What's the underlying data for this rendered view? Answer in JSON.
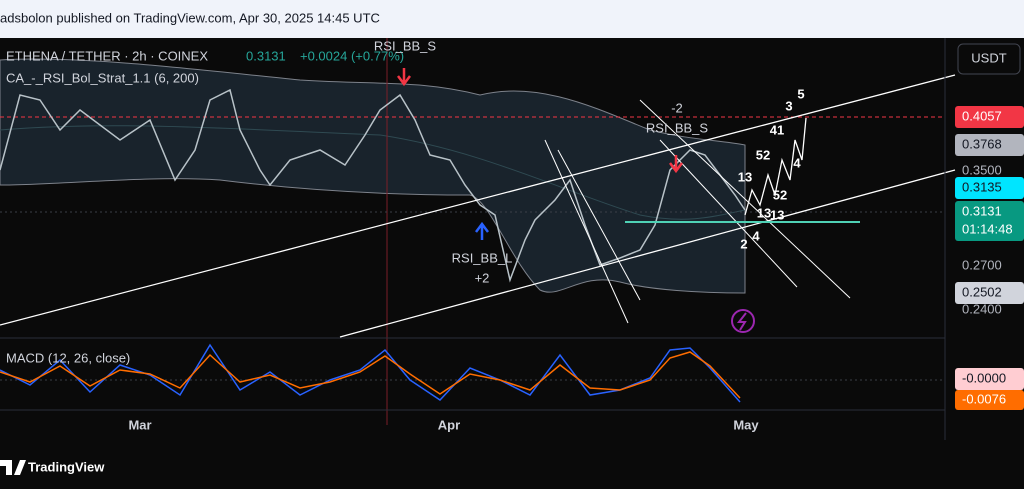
{
  "header": {
    "text": "adsbolon published on TradingView.com, Apr 30, 2025 14:45 UTC"
  },
  "legend": {
    "symbol": "ETHENA / TETHER · 2h · COINEX",
    "price": "0.3131",
    "change": "+0.0024 (+0.77%)",
    "indicator": "CA_-_RSI_Bol_Strat_1.1 (6, 200)"
  },
  "annotations": {
    "signals": [
      "RSI_BB_S",
      "RSI_BB_L",
      "+2",
      "-2",
      "RSI_BB_S"
    ],
    "waves": [
      "5",
      "3",
      "41",
      "52",
      "4",
      "13",
      "52",
      "13",
      "13",
      "2",
      "4"
    ]
  },
  "price_axis": {
    "currency": "USDT",
    "labels": [
      "0.4057",
      "0.3768",
      "0.3500",
      "0.3135",
      "0.3131",
      "0.2700",
      "0.2502",
      "0.2400"
    ],
    "countdown": "01:14:48"
  },
  "macd": {
    "label": "MACD (12, 26, close)",
    "labels": [
      "-0.0000",
      "-0.0076"
    ]
  },
  "time_axis": [
    "Mar",
    "Apr",
    "May"
  ],
  "footer": {
    "brand": "TradingView"
  }
}
